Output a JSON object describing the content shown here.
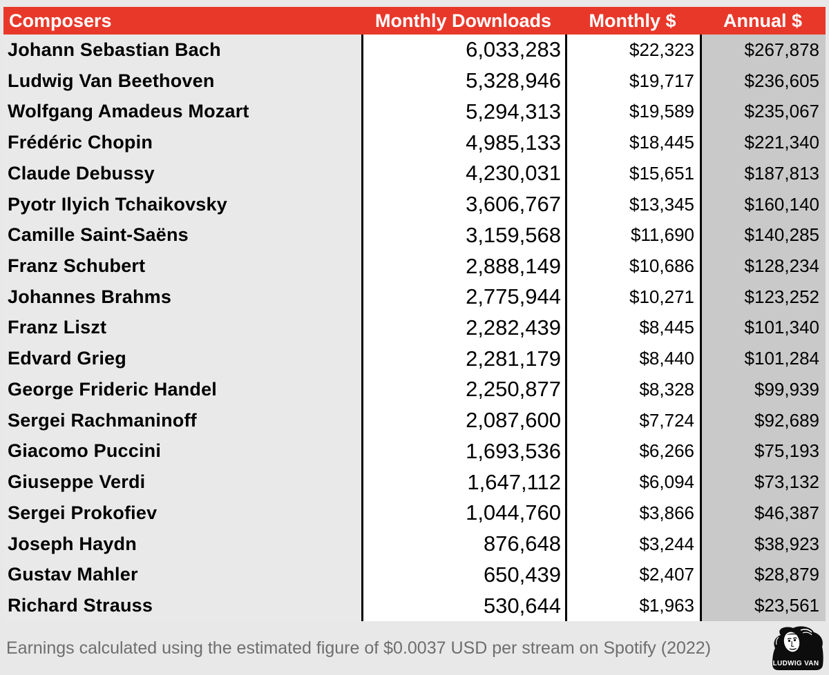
{
  "table": {
    "columns": [
      "Composers",
      "Monthly Downloads",
      "Monthly $",
      "Annual $"
    ],
    "rows": [
      {
        "composer": "Johann Sebastian Bach",
        "downloads": "6,033,283",
        "monthly": "$22,323",
        "annual": "$267,878"
      },
      {
        "composer": "Ludwig Van Beethoven",
        "downloads": "5,328,946",
        "monthly": "$19,717",
        "annual": "$236,605"
      },
      {
        "composer": "Wolfgang Amadeus Mozart",
        "downloads": "5,294,313",
        "monthly": "$19,589",
        "annual": "$235,067"
      },
      {
        "composer": "Frédéric Chopin",
        "downloads": "4,985,133",
        "monthly": "$18,445",
        "annual": "$221,340"
      },
      {
        "composer": "Claude Debussy",
        "downloads": "4,230,031",
        "monthly": "$15,651",
        "annual": "$187,813"
      },
      {
        "composer": "Pyotr Ilyich Tchaikovsky",
        "downloads": "3,606,767",
        "monthly": "$13,345",
        "annual": "$160,140"
      },
      {
        "composer": "Camille Saint-Saëns",
        "downloads": "3,159,568",
        "monthly": "$11,690",
        "annual": "$140,285"
      },
      {
        "composer": "Franz Schubert",
        "downloads": "2,888,149",
        "monthly": "$10,686",
        "annual": "$128,234"
      },
      {
        "composer": "Johannes Brahms",
        "downloads": "2,775,944",
        "monthly": "$10,271",
        "annual": "$123,252"
      },
      {
        "composer": "Franz Liszt",
        "downloads": "2,282,439",
        "monthly": "$8,445",
        "annual": "$101,340"
      },
      {
        "composer": "Edvard Grieg",
        "downloads": "2,281,179",
        "monthly": "$8,440",
        "annual": "$101,284"
      },
      {
        "composer": "George Frideric Handel",
        "downloads": "2,250,877",
        "monthly": "$8,328",
        "annual": "$99,939"
      },
      {
        "composer": "Sergei Rachmaninoff",
        "downloads": "2,087,600",
        "monthly": "$7,724",
        "annual": "$92,689"
      },
      {
        "composer": "Giacomo Puccini",
        "downloads": "1,693,536",
        "monthly": "$6,266",
        "annual": "$75,193"
      },
      {
        "composer": "Giuseppe Verdi",
        "downloads": "1,647,112",
        "monthly": "$6,094",
        "annual": "$73,132"
      },
      {
        "composer": "Sergei Prokofiev",
        "downloads": "1,044,760",
        "monthly": "$3,866",
        "annual": "$46,387"
      },
      {
        "composer": "Joseph Haydn",
        "downloads": "876,648",
        "monthly": "$3,244",
        "annual": "$38,923"
      },
      {
        "composer": "Gustav Mahler",
        "downloads": "650,439",
        "monthly": "$2,407",
        "annual": "$28,879"
      },
      {
        "composer": "Richard Strauss",
        "downloads": "530,644",
        "monthly": "$1,963",
        "annual": "$23,561"
      }
    ]
  },
  "footer": {
    "note": "Earnings calculated using the estimated figure of $0.0037 USD per stream on Spotify (2022)",
    "logo_text": "LUDWIG VAN"
  },
  "colors": {
    "header_red": "#e8382a",
    "header_text": "#ffffff",
    "composer_cell_bg": "#e9e9e9",
    "downloads_cell_bg": "#ffffff",
    "monthly_cell_bg": "#ffffff",
    "annual_cell_bg": "#c9c9c9",
    "divider_black": "#000000",
    "page_bg": "#e9e8e8",
    "footnote_text": "#6e6e6e"
  },
  "chart_data": {
    "type": "table",
    "columns": [
      "Composers",
      "Monthly Downloads",
      "Monthly $",
      "Annual $"
    ],
    "rows": [
      [
        "Johann Sebastian Bach",
        6033283,
        22323,
        267878
      ],
      [
        "Ludwig Van Beethoven",
        5328946,
        19717,
        236605
      ],
      [
        "Wolfgang Amadeus Mozart",
        5294313,
        19589,
        235067
      ],
      [
        "Frédéric Chopin",
        4985133,
        18445,
        221340
      ],
      [
        "Claude Debussy",
        4230031,
        15651,
        187813
      ],
      [
        "Pyotr Ilyich Tchaikovsky",
        3606767,
        13345,
        160140
      ],
      [
        "Camille Saint-Saëns",
        3159568,
        11690,
        140285
      ],
      [
        "Franz Schubert",
        2888149,
        10686,
        128234
      ],
      [
        "Johannes Brahms",
        2775944,
        10271,
        123252
      ],
      [
        "Franz Liszt",
        2282439,
        8445,
        101340
      ],
      [
        "Edvard Grieg",
        2281179,
        8440,
        101284
      ],
      [
        "George Frideric Handel",
        2250877,
        8328,
        99939
      ],
      [
        "Sergei Rachmaninoff",
        2087600,
        7724,
        92689
      ],
      [
        "Giacomo Puccini",
        1693536,
        6266,
        75193
      ],
      [
        "Giuseppe Verdi",
        1647112,
        6094,
        73132
      ],
      [
        "Sergei Prokofiev",
        1044760,
        3866,
        46387
      ],
      [
        "Joseph Haydn",
        876648,
        3244,
        38923
      ],
      [
        "Gustav Mahler",
        650439,
        2407,
        28879
      ],
      [
        "Richard Strauss",
        530644,
        1963,
        23561
      ]
    ],
    "note": "Earnings calculated using the estimated figure of $0.0037 USD per stream on Spotify (2022)"
  }
}
